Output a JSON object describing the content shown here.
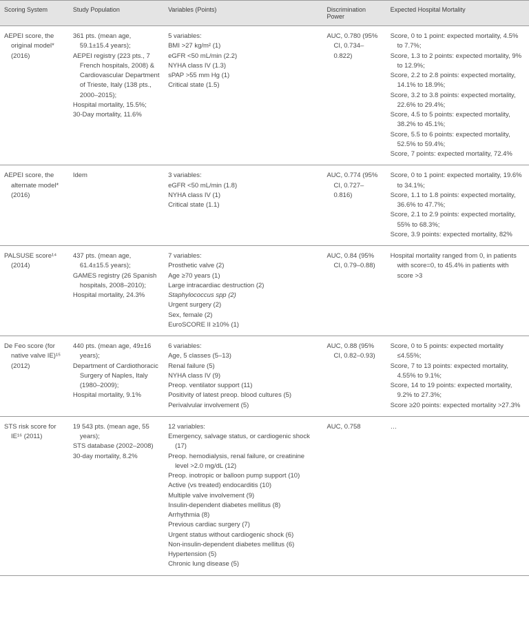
{
  "headers": {
    "h1": "Scoring System",
    "h2": "Study Population",
    "h3": "Variables (Points)",
    "h4": "Discrimination Power",
    "h5": "Expected Hospital Mortality"
  },
  "rows": [
    {
      "scoring": "AEPEI score, the original model* (2016)",
      "population": [
        "361 pts. (mean age, 59.1±15.4 years);",
        "AEPEI registry (223 pts., 7 French hospitals, 2008) & Cardiovascular Department of Trieste, Italy (138 pts., 2000–2015);",
        "Hospital mortality, 15.5%;",
        "30-Day mortality, 11.6%"
      ],
      "variables_header": "5 variables:",
      "variables": [
        "BMI >27 kg/m² (1)",
        "eGFR <50 mL/min (2.2)",
        "NYHA class IV (1.3)",
        "sPAP >55 mm Hg (1)",
        "Critical state (1.5)"
      ],
      "discrimination": [
        "AUC, 0.780 (95% CI, 0.734–0.822)"
      ],
      "mortality": [
        "Score, 0 to 1 point: expected mortality, 4.5% to 7.7%;",
        "Score, 1.3 to 2 points: expected mortality, 9% to 12.9%;",
        "Score, 2.2 to 2.8 points: expected mortality, 14.1% to 18.9%;",
        "Score, 3.2 to 3.8 points: expected mortality, 22.6% to 29.4%;",
        "Score, 4.5 to 5 points: expected mortality, 38.2% to 45.1%;",
        "Score, 5.5 to 6 points: expected mortality, 52.5% to 59.4%;",
        "Score, 7 points: expected mortality, 72.4%"
      ]
    },
    {
      "scoring": "AEPEI score, the alternate model* (2016)",
      "population": [
        "Idem"
      ],
      "variables_header": "3 variables:",
      "variables": [
        "eGFR <50 mL/min (1.8)",
        "NYHA class IV (1)",
        "Critical state (1.1)"
      ],
      "discrimination": [
        "AUC, 0.774 (95% CI, 0.727–0.816)"
      ],
      "mortality": [
        "Score, 0 to 1 point: expected mortality, 19.6% to 34.1%;",
        "Score, 1.1 to 1.8 points: expected mortality, 36.6% to 47.7%;",
        "Score, 2.1 to 2.9 points: expected mortality, 55% to 68.3%;",
        "Score, 3.9 points: expected mortality, 82%"
      ]
    },
    {
      "scoring": "PALSUSE score¹⁴ (2014)",
      "population": [
        "437 pts. (mean age, 61.4±15.5 years);",
        "GAMES registry (26 Spanish hospitals, 2008–2010);",
        "Hospital mortality, 24.3%"
      ],
      "variables_header": "7 variables:",
      "variables": [
        "Prosthetic valve (2)",
        "Age ≥70 years (1)",
        "Large intracardiac destruction (2)",
        "Staphylococcus spp (2)",
        "Urgent surgery (2)",
        "Sex, female (2)",
        "EuroSCORE II ≥10% (1)"
      ],
      "variables_italic_idx": 3,
      "discrimination": [
        "AUC, 0.84 (95% CI, 0.79–0.88)"
      ],
      "mortality": [
        "Hospital mortality ranged from 0, in patients with score=0, to 45.4% in patients with score >3"
      ]
    },
    {
      "scoring": "De Feo score (for native valve IE)¹⁵ (2012)",
      "population": [
        "440 pts. (mean age, 49±16 years);",
        "Department of Cardiothoracic Surgery of Naples, Italy (1980–2009);",
        "Hospital mortality, 9.1%"
      ],
      "variables_header": "6 variables:",
      "variables": [
        "Age, 5 classes (5–13)",
        "Renal failure (5)",
        "NYHA class IV (9)",
        "Preop. ventilator support (11)",
        "Positivity of latest preop. blood cultures (5)",
        "Perivalvular involvement (5)"
      ],
      "discrimination": [
        "AUC, 0.88 (95% CI, 0.82–0.93)"
      ],
      "mortality": [
        "Score, 0 to 5 points: expected mortality ≤4.55%;",
        "Score, 7 to 13 points: expected mortality, 4.55% to 9.1%;",
        "Score, 14 to 19 points: expected mortality, 9.2% to 27.3%;",
        "Score ≥20 points: expected mortality >27.3%"
      ]
    },
    {
      "scoring": "STS risk score for IE¹⁶ (2011)",
      "population": [
        "19 543 pts. (mean age, 55 years);",
        "STS database (2002–2008)",
        "30-day mortality, 8.2%"
      ],
      "variables_header": "12 variables:",
      "variables": [
        "Emergency, salvage status, or cardiogenic shock (17)",
        "Preop. hemodialysis, renal failure, or creatinine level >2.0 mg/dL (12)",
        "Preop. inotropic or balloon pump support (10)",
        "Active (vs treated) endocarditis (10)",
        "Multiple valve involvement (9)",
        "Insulin-dependent diabetes mellitus (8)",
        "Arrhythmia (8)",
        "Previous cardiac surgery (7)",
        "Urgent status without cardiogenic shock (6)",
        "Non-insulin-dependent diabetes mellitus (6)",
        "Hypertension (5)",
        "Chronic lung disease (5)"
      ],
      "discrimination": [
        "AUC, 0.758"
      ],
      "mortality": [
        "…"
      ]
    }
  ]
}
